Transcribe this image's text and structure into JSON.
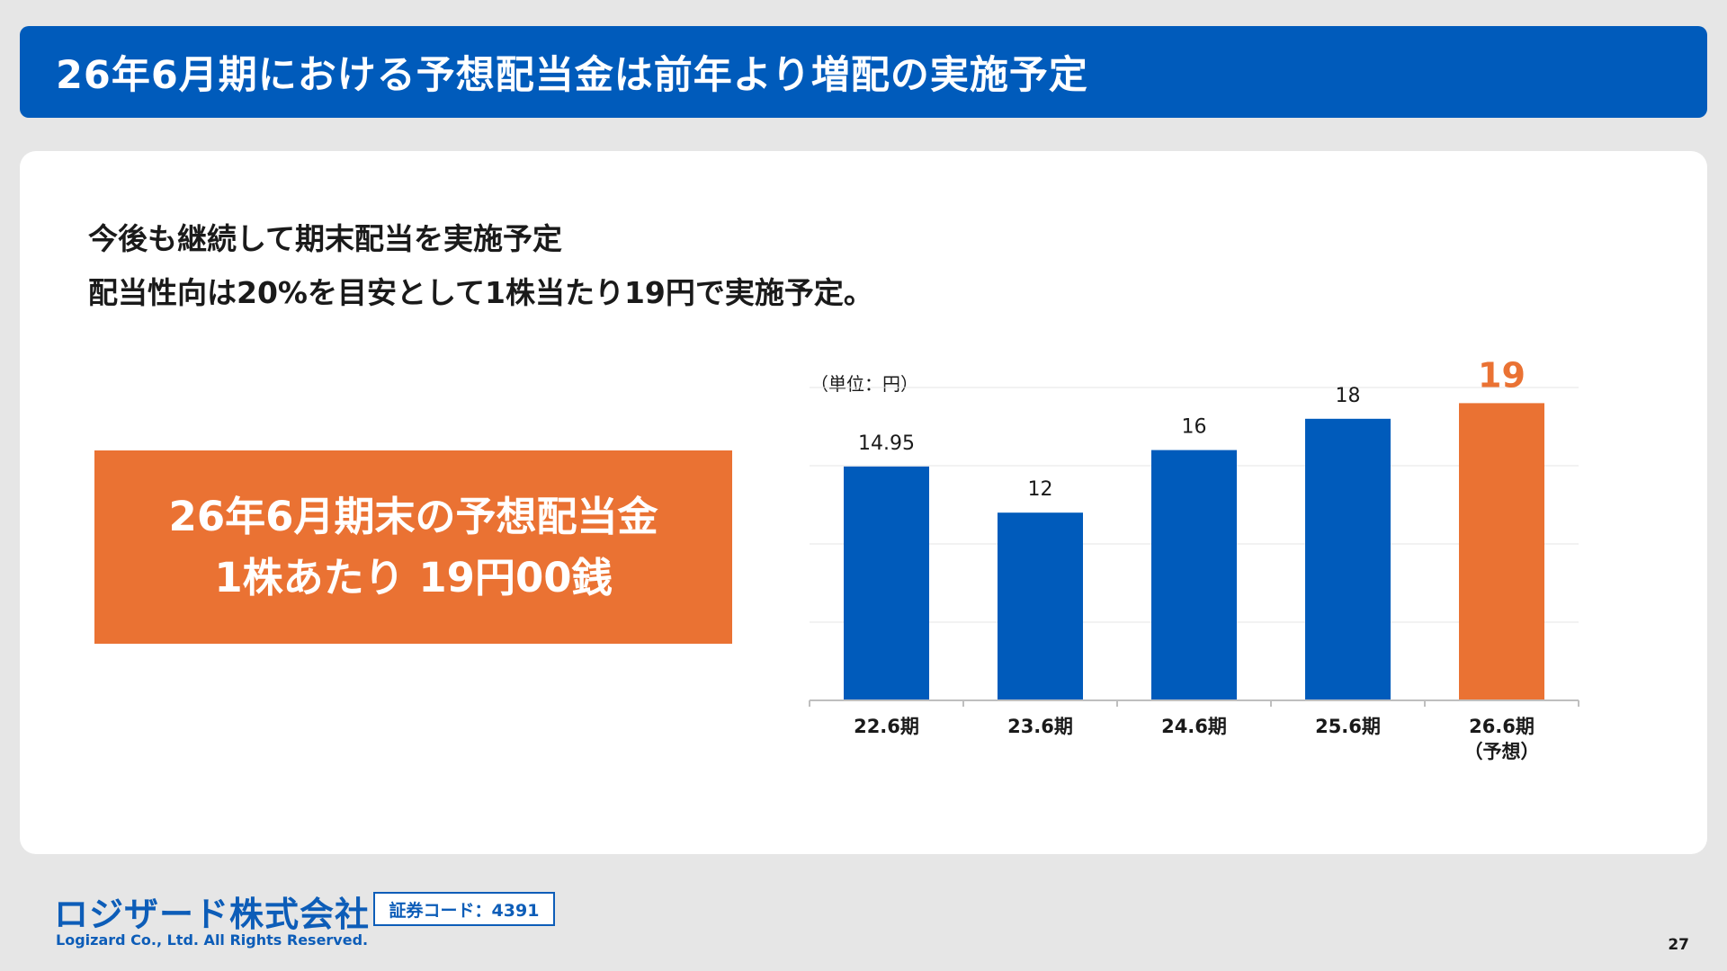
{
  "header": {
    "title": "26年6月期における予想配当金は前年より増配の実施予定"
  },
  "lead": {
    "line1": "今後も継続して期末配当を実施予定",
    "line2": "配当性向は20%を目安として1株当たり19円で実施予定。"
  },
  "callout": {
    "line1": "26年6月期末の予想配当金",
    "line2": "1株あたり 19円00銭"
  },
  "colors": {
    "primary_blue": "#005bbb",
    "accent_orange": "#ea7233"
  },
  "chart_data": {
    "type": "bar",
    "unit_label": "（単位：円）",
    "categories": [
      "22.6期",
      "23.6期",
      "24.6期",
      "25.6期",
      "26.6期"
    ],
    "category_sublabels": [
      "",
      "",
      "",
      "",
      "（予想）"
    ],
    "values": [
      14.95,
      12,
      16,
      18,
      19
    ],
    "value_labels": [
      "14.95",
      "12",
      "16",
      "18",
      "19"
    ],
    "highlight": [
      false,
      false,
      false,
      false,
      true
    ],
    "ylim": [
      0,
      20
    ],
    "grid": true,
    "legend": "none"
  },
  "footer": {
    "company": "ロジザード株式会社",
    "stock_code": "証券コード：4391",
    "copyright": "Logizard Co., Ltd. All Rights Reserved.",
    "page_number": "27"
  }
}
